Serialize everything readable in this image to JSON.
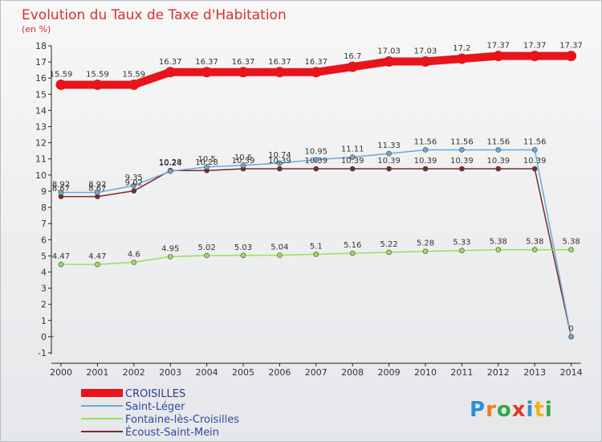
{
  "chart_data": {
    "type": "line",
    "title": "Evolution du Taux de Taxe d'Habitation",
    "ylabel": "(en %)",
    "xlabel": "",
    "x": [
      "2000",
      "2001",
      "2002",
      "2003",
      "2004",
      "2005",
      "2006",
      "2007",
      "2008",
      "2009",
      "2010",
      "2011",
      "2012",
      "2013",
      "2014"
    ],
    "ylim": [
      -1,
      18
    ],
    "yticks": [
      "-1",
      "0",
      "1",
      "2",
      "3",
      "4",
      "5",
      "6",
      "7",
      "8",
      "9",
      "10",
      "11",
      "12",
      "13",
      "14",
      "15",
      "16",
      "17",
      "18"
    ],
    "grid": false,
    "legend_position": "bottom-left",
    "series": [
      {
        "name": "CROISILLES",
        "color": "#e8141b",
        "values": [
          15.59,
          15.59,
          15.59,
          16.37,
          16.37,
          16.37,
          16.37,
          16.37,
          16.7,
          17.03,
          17.03,
          17.2,
          17.37,
          17.37,
          17.37
        ],
        "labels": [
          "15.59",
          "15.59",
          "15.59",
          "16.37",
          "16.37",
          "16.37",
          "16.37",
          "16.37",
          "16.7",
          "17.03",
          "17.03",
          "17.2",
          "17.37",
          "17.37",
          "17.37"
        ]
      },
      {
        "name": "Saint-Léger",
        "color": "#6fa8d6",
        "values": [
          8.92,
          8.92,
          9.35,
          10.24,
          10.5,
          10.6,
          10.74,
          10.95,
          11.11,
          11.33,
          11.56,
          11.56,
          11.56,
          11.56,
          0
        ],
        "labels": [
          "8.92",
          "8.92",
          "9.35",
          "10.24",
          "10.5",
          "10.6",
          "10.74",
          "10.95",
          "11.11",
          "11.33",
          "11.56",
          "11.56",
          "11.56",
          "11.56",
          ""
        ]
      },
      {
        "name": "Fontaine-lès-Croisilles",
        "color": "#99e05a",
        "values": [
          4.47,
          4.47,
          4.6,
          4.95,
          5.02,
          5.03,
          5.04,
          5.1,
          5.16,
          5.22,
          5.28,
          5.33,
          5.38,
          5.38,
          5.38
        ],
        "labels": [
          "4.47",
          "4.47",
          "4.6",
          "4.95",
          "5.02",
          "5.03",
          "5.04",
          "5.1",
          "5.16",
          "5.22",
          "5.28",
          "5.33",
          "5.38",
          "5.38",
          "5.38"
        ]
      },
      {
        "name": "Écoust-Saint-Mein",
        "color": "#7b2a2a",
        "values": [
          8.67,
          8.67,
          9.02,
          10.28,
          10.28,
          10.39,
          10.39,
          10.39,
          10.39,
          10.39,
          10.39,
          10.39,
          10.39,
          10.39,
          -0.01
        ],
        "labels": [
          "8.67",
          "8.67",
          "9.02",
          "10.28",
          "10.28",
          "10.39",
          "10.39",
          "10.39",
          "10.39",
          "10.39",
          "10.39",
          "10.39",
          "10.39",
          "10.39",
          "0"
        ]
      }
    ]
  },
  "brand": {
    "text": "Proxiti",
    "letters": [
      {
        "ch": "P",
        "color": "#2f8fd8"
      },
      {
        "ch": "r",
        "color": "#f07a1a"
      },
      {
        "ch": "o",
        "color": "#3aa54a"
      },
      {
        "ch": "x",
        "color": "#e23b2a"
      },
      {
        "ch": "i",
        "color": "#2f8fd8"
      },
      {
        "ch": "t",
        "color": "#f0b21a"
      },
      {
        "ch": "i",
        "color": "#3aa54a"
      }
    ]
  }
}
